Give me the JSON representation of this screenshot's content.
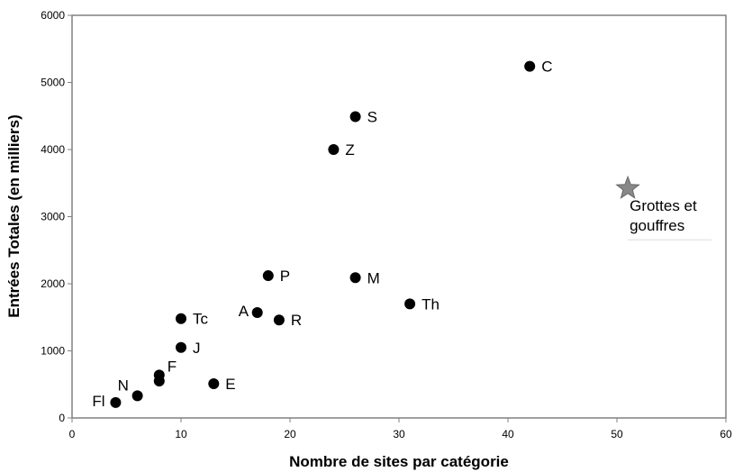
{
  "chart_data": {
    "type": "scatter",
    "xlabel": "Nombre de sites par catégorie",
    "ylabel": "Entrées Totales (en milliers)",
    "xlim": [
      0,
      60
    ],
    "ylim": [
      0,
      6000
    ],
    "x_ticks": [
      "0",
      "10",
      "20",
      "30",
      "40",
      "50",
      "60"
    ],
    "y_ticks": [
      "0",
      "1000",
      "2000",
      "3000",
      "4000",
      "5000",
      "6000"
    ],
    "grid": false,
    "points": [
      {
        "label": "C",
        "x": 42,
        "y": 5240
      },
      {
        "label": "S",
        "x": 26,
        "y": 4490
      },
      {
        "label": "Z",
        "x": 24,
        "y": 4000
      },
      {
        "label": "P",
        "x": 18,
        "y": 2120
      },
      {
        "label": "M",
        "x": 26,
        "y": 2090
      },
      {
        "label": "Th",
        "x": 31,
        "y": 1700
      },
      {
        "label": "A",
        "x": 17,
        "y": 1570
      },
      {
        "label": "R",
        "x": 19,
        "y": 1460
      },
      {
        "label": "Tc",
        "x": 10,
        "y": 1480
      },
      {
        "label": "J",
        "x": 10,
        "y": 1050
      },
      {
        "label": "F",
        "x": 8,
        "y": 640
      },
      {
        "label": "",
        "x": 8,
        "y": 550
      },
      {
        "label": "E",
        "x": 13,
        "y": 510
      },
      {
        "label": "N",
        "x": 6,
        "y": 330
      },
      {
        "label": "Fl",
        "x": 4,
        "y": 230
      }
    ],
    "highlight": {
      "label_lines": [
        "Grottes et",
        "gouffres"
      ],
      "x": 51,
      "y": 3420,
      "marker": "star",
      "color": "#888888"
    },
    "marker_color": "#000000"
  }
}
